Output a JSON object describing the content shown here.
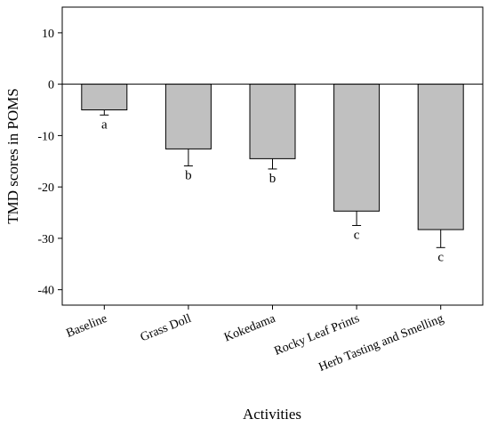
{
  "chart_data": {
    "type": "bar",
    "categories": [
      "Baseline",
      "Grass Doll",
      "Kokedama",
      "Rocky Leaf Prints",
      "Herb Tasting and Smelling"
    ],
    "values": [
      -5.0,
      -12.6,
      -14.5,
      -24.7,
      -28.3
    ],
    "error_bars": [
      1.0,
      3.3,
      2.0,
      2.8,
      3.5
    ],
    "significance_labels": [
      "a",
      "b",
      "b",
      "c",
      "c"
    ],
    "xlabel": "Activities",
    "ylabel": "TMD scores in POMS",
    "ylim": [
      -43,
      15
    ],
    "yticks": [
      10,
      0,
      -10,
      -20,
      -30,
      -40
    ],
    "grid": false,
    "zero_line": true,
    "bar_color": "#c0c0c0",
    "edge_color": "#000000"
  }
}
